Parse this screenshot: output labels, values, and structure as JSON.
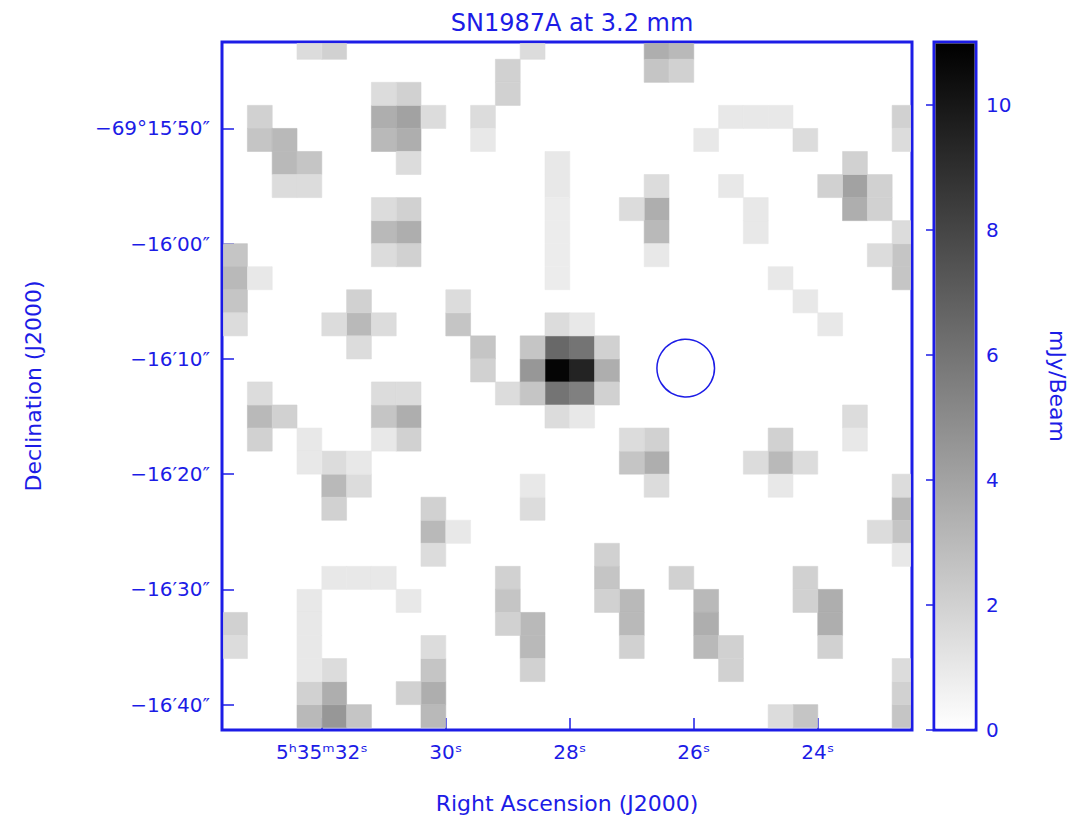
{
  "chart_data": {
    "type": "heatmap",
    "title": "SN1987A at 3.2 mm",
    "x_label": "Right Ascension (J2000)",
    "y_label": "Declination (J2000)",
    "xlim": [
      22.48,
      33.61
    ],
    "ylim": [
      -1002.2,
      -942.5
    ],
    "xticks": [
      {
        "value": 32,
        "label": "5ʰ35ᵐ32ˢ"
      },
      {
        "value": 30,
        "label": "30ˢ"
      },
      {
        "value": 28,
        "label": "28ˢ"
      },
      {
        "value": 26,
        "label": "26ˢ"
      },
      {
        "value": 24,
        "label": "24ˢ"
      }
    ],
    "yticks": [
      {
        "value": -950,
        "label": "−69°15′50″"
      },
      {
        "value": -960,
        "label": "−16′00″"
      },
      {
        "value": -970,
        "label": "−16′10″"
      },
      {
        "value": -980,
        "label": "−16′20″"
      },
      {
        "value": -990,
        "label": "−16′30″"
      },
      {
        "value": -1000,
        "label": "−16′40″"
      }
    ],
    "cell_size": [
      0.4,
      2
    ],
    "cells": [
      [
        33.0,
        -949,
        2
      ],
      [
        33.0,
        -951,
        2.5
      ],
      [
        32.6,
        -951,
        3
      ],
      [
        32.6,
        -953,
        3
      ],
      [
        32.2,
        -953,
        2.5
      ],
      [
        32.2,
        -955,
        1.5
      ],
      [
        32.6,
        -955,
        1.5
      ],
      [
        30.6,
        -949,
        4
      ],
      [
        31.0,
        -949,
        3.5
      ],
      [
        30.6,
        -951,
        3.5
      ],
      [
        31.0,
        -951,
        3
      ],
      [
        30.6,
        -947,
        2
      ],
      [
        31.0,
        -947,
        1.5
      ],
      [
        30.6,
        -953,
        1.5
      ],
      [
        30.2,
        -949,
        1.5
      ],
      [
        30.6,
        -959,
        3.5
      ],
      [
        31.0,
        -959,
        3
      ],
      [
        30.6,
        -957,
        2
      ],
      [
        30.6,
        -961,
        2
      ],
      [
        31.0,
        -961,
        1.5
      ],
      [
        31.0,
        -957,
        1.5
      ],
      [
        31.8,
        -943,
        2
      ],
      [
        32.2,
        -943,
        1.5
      ],
      [
        28.6,
        -943,
        1.5
      ],
      [
        29.0,
        -945,
        2
      ],
      [
        29.0,
        -947,
        2
      ],
      [
        29.4,
        -949,
        1.5
      ],
      [
        29.4,
        -951,
        1
      ],
      [
        26.6,
        -943,
        3.5
      ],
      [
        26.2,
        -943,
        3
      ],
      [
        26.6,
        -945,
        2.5
      ],
      [
        26.2,
        -945,
        2
      ],
      [
        28.2,
        -953,
        1
      ],
      [
        28.2,
        -955,
        1
      ],
      [
        28.2,
        -957,
        0.8
      ],
      [
        28.2,
        -959,
        0.8
      ],
      [
        28.2,
        -961,
        0.8
      ],
      [
        28.2,
        -963,
        0.8
      ],
      [
        26.6,
        -957,
        3.5
      ],
      [
        26.6,
        -959,
        3
      ],
      [
        27.0,
        -957,
        1.5
      ],
      [
        26.6,
        -955,
        1.5
      ],
      [
        26.6,
        -961,
        1
      ],
      [
        25.8,
        -951,
        1
      ],
      [
        25.4,
        -949,
        1
      ],
      [
        25.0,
        -949,
        1
      ],
      [
        24.6,
        -949,
        1
      ],
      [
        24.2,
        -951,
        1.5
      ],
      [
        25.4,
        -955,
        1
      ],
      [
        25.0,
        -957,
        1
      ],
      [
        25.0,
        -959,
        1
      ],
      [
        24.6,
        -963,
        1
      ],
      [
        24.2,
        -965,
        1
      ],
      [
        23.8,
        -967,
        1
      ],
      [
        23.4,
        -955,
        4
      ],
      [
        23.4,
        -957,
        3.5
      ],
      [
        23.0,
        -955,
        2
      ],
      [
        23.8,
        -955,
        2
      ],
      [
        23.4,
        -953,
        2
      ],
      [
        23.0,
        -957,
        2
      ],
      [
        22.6,
        -961,
        2.5
      ],
      [
        22.6,
        -963,
        2.5
      ],
      [
        23.0,
        -961,
        1.5
      ],
      [
        22.6,
        -959,
        1.5
      ],
      [
        22.6,
        -949,
        2
      ],
      [
        22.6,
        -951,
        1.5
      ],
      [
        33.4,
        -961,
        2.5
      ],
      [
        33.4,
        -963,
        3
      ],
      [
        33.4,
        -965,
        2.5
      ],
      [
        33.4,
        -967,
        1.5
      ],
      [
        33.0,
        -963,
        1
      ],
      [
        31.4,
        -967,
        3
      ],
      [
        31.4,
        -965,
        2
      ],
      [
        31.8,
        -967,
        1.5
      ],
      [
        31.0,
        -967,
        1.5
      ],
      [
        31.4,
        -969,
        1.5
      ],
      [
        29.8,
        -967,
        2.5
      ],
      [
        29.4,
        -969,
        2.5
      ],
      [
        29.4,
        -971,
        2
      ],
      [
        29.0,
        -973,
        1.5
      ],
      [
        29.8,
        -965,
        1.5
      ],
      [
        28.2,
        -971,
        10.8
      ],
      [
        27.8,
        -971,
        9.5
      ],
      [
        28.2,
        -969,
        6.5
      ],
      [
        27.8,
        -969,
        6
      ],
      [
        28.2,
        -973,
        6
      ],
      [
        27.8,
        -973,
        5.5
      ],
      [
        28.6,
        -971,
        4.5
      ],
      [
        27.4,
        -971,
        3.5
      ],
      [
        28.6,
        -969,
        2.5
      ],
      [
        28.6,
        -973,
        2.5
      ],
      [
        27.4,
        -969,
        2
      ],
      [
        27.4,
        -973,
        2
      ],
      [
        28.2,
        -967,
        1.5
      ],
      [
        28.2,
        -975,
        1.5
      ],
      [
        27.8,
        -975,
        1
      ],
      [
        27.8,
        -967,
        1
      ],
      [
        33.0,
        -975,
        3
      ],
      [
        33.0,
        -977,
        2
      ],
      [
        32.6,
        -975,
        2
      ],
      [
        33.0,
        -973,
        1.5
      ],
      [
        30.6,
        -975,
        3.5
      ],
      [
        31.0,
        -975,
        2.5
      ],
      [
        30.6,
        -977,
        2
      ],
      [
        31.0,
        -973,
        1.5
      ],
      [
        30.6,
        -973,
        1.5
      ],
      [
        31.8,
        -981,
        3
      ],
      [
        31.8,
        -983,
        2
      ],
      [
        31.8,
        -979,
        1.5
      ],
      [
        31.4,
        -981,
        1.5
      ],
      [
        32.2,
        -977,
        1
      ],
      [
        32.2,
        -979,
        1
      ],
      [
        31.4,
        -979,
        1
      ],
      [
        31.0,
        -977,
        1
      ],
      [
        30.2,
        -985,
        3
      ],
      [
        30.2,
        -983,
        2
      ],
      [
        30.2,
        -987,
        1.5
      ],
      [
        29.8,
        -985,
        1
      ],
      [
        28.6,
        -983,
        1.5
      ],
      [
        28.6,
        -981,
        1
      ],
      [
        26.6,
        -979,
        3.5
      ],
      [
        27.0,
        -979,
        2.5
      ],
      [
        26.6,
        -977,
        2
      ],
      [
        26.6,
        -981,
        1.5
      ],
      [
        27.0,
        -977,
        1.5
      ],
      [
        24.6,
        -979,
        3
      ],
      [
        24.6,
        -977,
        2
      ],
      [
        25.0,
        -979,
        1.5
      ],
      [
        24.2,
        -979,
        1.5
      ],
      [
        24.6,
        -981,
        1
      ],
      [
        23.4,
        -975,
        1.5
      ],
      [
        23.4,
        -977,
        1
      ],
      [
        22.6,
        -983,
        3
      ],
      [
        22.6,
        -985,
        2.5
      ],
      [
        22.6,
        -981,
        1.5
      ],
      [
        23.0,
        -985,
        1.5
      ],
      [
        22.6,
        -987,
        1
      ],
      [
        29.0,
        -989,
        2
      ],
      [
        29.0,
        -991,
        2.5
      ],
      [
        28.6,
        -993,
        3
      ],
      [
        28.6,
        -995,
        3
      ],
      [
        28.6,
        -997,
        2
      ],
      [
        29.0,
        -993,
        2
      ],
      [
        27.4,
        -987,
        2
      ],
      [
        27.4,
        -989,
        2.5
      ],
      [
        27.0,
        -991,
        3
      ],
      [
        27.0,
        -993,
        3
      ],
      [
        27.0,
        -995,
        2
      ],
      [
        27.4,
        -991,
        2
      ],
      [
        26.2,
        -989,
        2
      ],
      [
        25.8,
        -991,
        3
      ],
      [
        25.8,
        -993,
        3.5
      ],
      [
        25.8,
        -995,
        3
      ],
      [
        25.4,
        -997,
        2
      ],
      [
        25.4,
        -995,
        2
      ],
      [
        24.2,
        -989,
        2
      ],
      [
        23.8,
        -991,
        3.5
      ],
      [
        23.8,
        -993,
        3.5
      ],
      [
        23.8,
        -995,
        2
      ],
      [
        24.2,
        -991,
        2
      ],
      [
        31.8,
        -1001,
        4.5
      ],
      [
        31.8,
        -999,
        3.5
      ],
      [
        32.2,
        -1001,
        3
      ],
      [
        31.4,
        -1001,
        2.5
      ],
      [
        31.8,
        -997,
        1.5
      ],
      [
        32.2,
        -999,
        2
      ],
      [
        30.2,
        -999,
        3.5
      ],
      [
        30.2,
        -1001,
        3
      ],
      [
        30.2,
        -997,
        2.5
      ],
      [
        30.6,
        -999,
        2
      ],
      [
        30.2,
        -995,
        1.5
      ],
      [
        32.2,
        -991,
        1
      ],
      [
        31.8,
        -989,
        1
      ],
      [
        31.4,
        -989,
        1
      ],
      [
        31.0,
        -989,
        1
      ],
      [
        30.6,
        -991,
        1
      ],
      [
        32.2,
        -993,
        1
      ],
      [
        32.2,
        -995,
        1
      ],
      [
        32.2,
        -997,
        1
      ],
      [
        33.4,
        -993,
        2
      ],
      [
        33.4,
        -995,
        1.5
      ],
      [
        24.2,
        -1001,
        2.5
      ],
      [
        24.6,
        -1001,
        1.5
      ],
      [
        22.6,
        -1001,
        2.5
      ],
      [
        22.6,
        -999,
        2
      ],
      [
        22.6,
        -997,
        1.5
      ]
    ],
    "colorbar": {
      "label": "mJy/Beam",
      "range": [
        0,
        11
      ],
      "ticks": [
        0,
        2,
        4,
        6,
        8,
        10
      ]
    },
    "circle": {
      "ra": 26.13,
      "dec": -970.8,
      "radius": 2.5
    }
  }
}
